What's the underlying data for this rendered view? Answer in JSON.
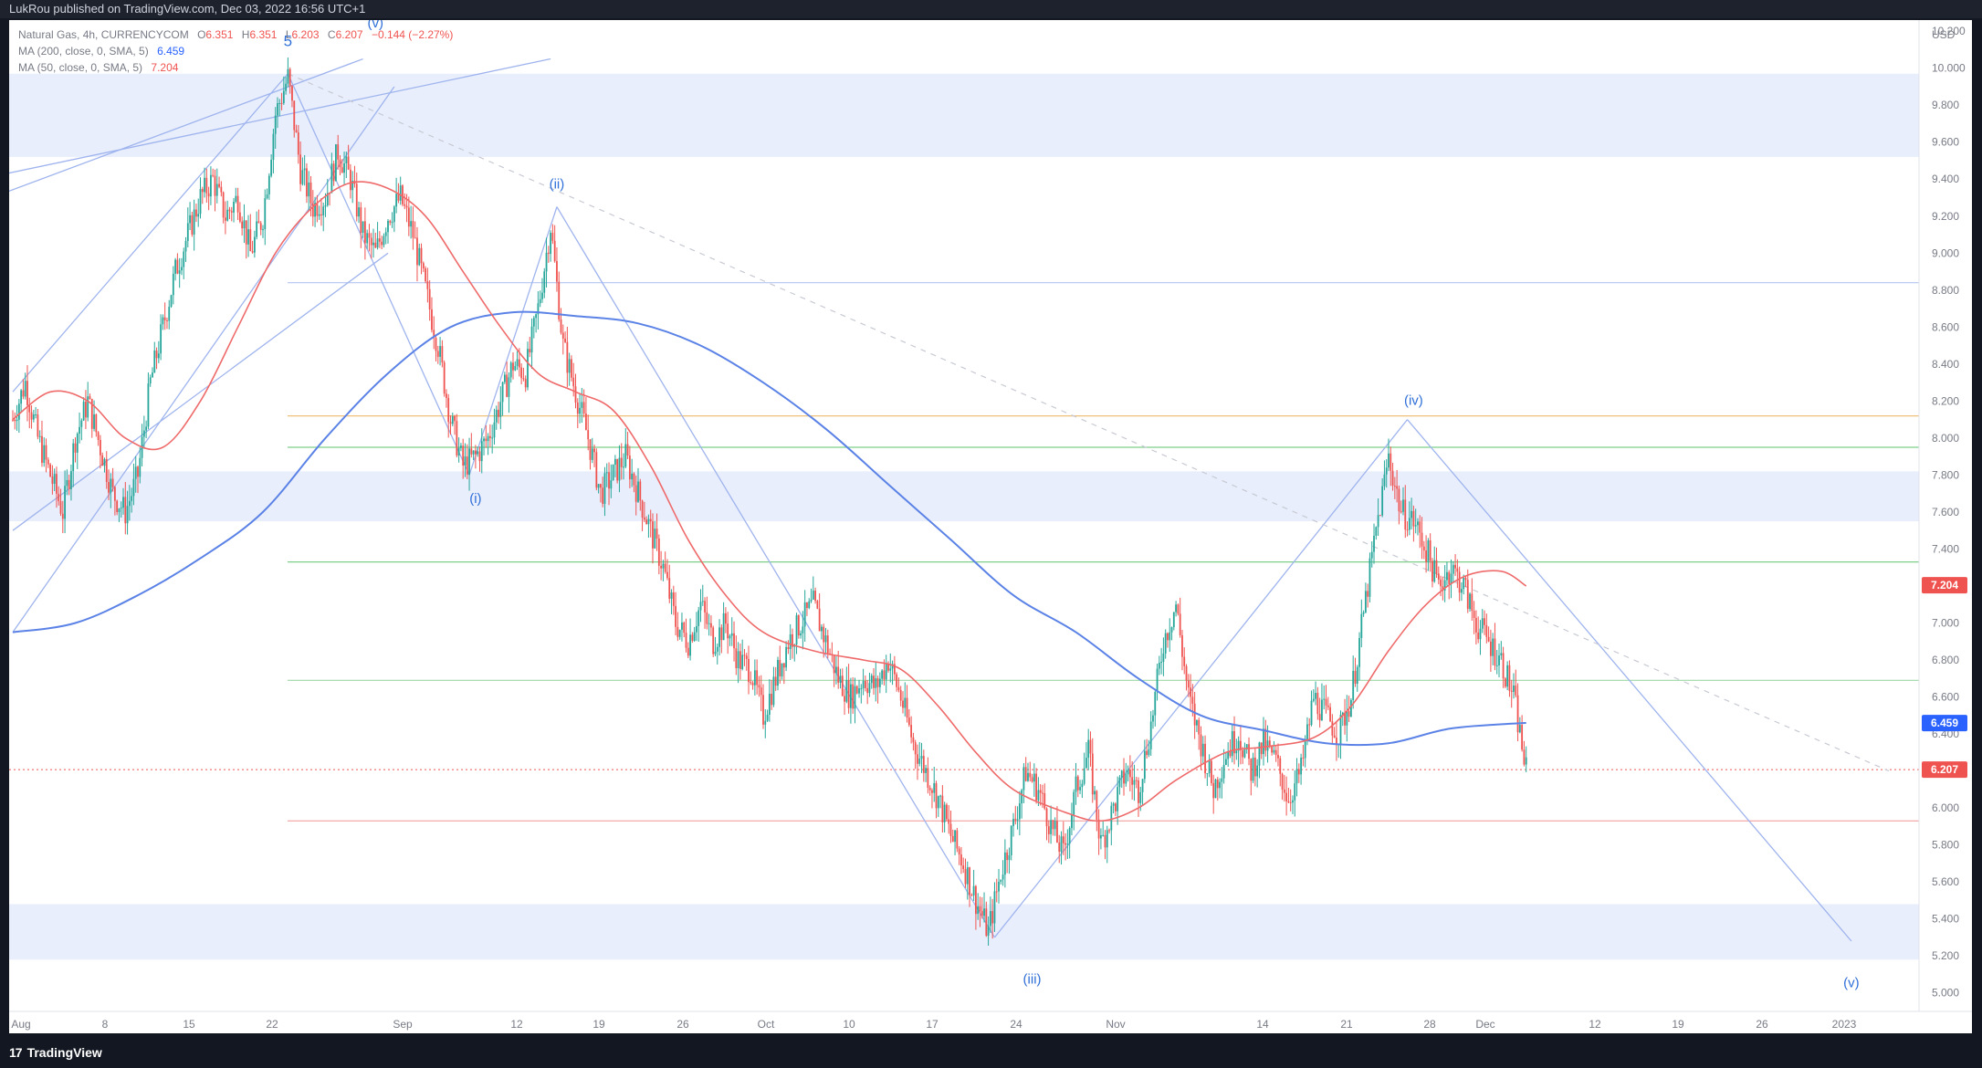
{
  "header": {
    "publisher_text": "LukRou published on TradingView.com, Dec 03, 2022 16:56 UTC+1"
  },
  "footer": {
    "brand": "TradingView"
  },
  "legend": {
    "symbol": "Natural Gas, 4h, CURRENCYCOM",
    "o_label": "O",
    "o_value": "6.351",
    "h_label": "H",
    "h_value": "6.351",
    "l_label": "L",
    "l_value": "6.203",
    "c_label": "C",
    "c_value": "6.207",
    "change": "−0.144 (−2.27%)",
    "ma200_text": "MA (200, close, 0, SMA, 5)",
    "ma200_value": "6.459",
    "ma50_text": "MA (50, close, 0, SMA, 5)",
    "ma50_value": "7.204"
  },
  "colors": {
    "up": "#26a69a",
    "down": "#ef5350",
    "ma200": "#5b82e6",
    "ma50": "#ef6a6a",
    "zone": "#e8eefc",
    "trend": "#9fb4ee",
    "wave_label": "#2f6fd8"
  },
  "chart_data": {
    "type": "candlestick",
    "title": "Natural Gas, 4h, CURRENCYCOM",
    "currency": "USD",
    "ylim": [
      4.9,
      10.26
    ],
    "y_ticks": [
      "10.200",
      "10.000",
      "9.800",
      "9.600",
      "9.400",
      "9.200",
      "9.000",
      "8.800",
      "8.600",
      "8.400",
      "8.200",
      "8.000",
      "7.800",
      "7.600",
      "7.400",
      "7.200",
      "7.000",
      "6.800",
      "6.600",
      "6.400",
      "6.200",
      "6.000",
      "5.800",
      "5.600",
      "5.400",
      "5.200",
      "5.000"
    ],
    "x_ticks": [
      "Aug",
      "8",
      "15",
      "22",
      "Sep",
      "12",
      "19",
      "26",
      "Oct",
      "10",
      "17",
      "24",
      "Nov",
      "14",
      "21",
      "28",
      "Dec",
      "12",
      "19",
      "26",
      "2023"
    ],
    "price_anchors": [
      {
        "d": 0,
        "v": 8.1
      },
      {
        "d": 1,
        "v": 8.3
      },
      {
        "d": 2,
        "v": 8.0
      },
      {
        "d": 3,
        "v": 7.8
      },
      {
        "d": 4,
        "v": 7.6
      },
      {
        "d": 5,
        "v": 8.0
      },
      {
        "d": 6,
        "v": 8.2
      },
      {
        "d": 7,
        "v": 7.95
      },
      {
        "d": 8,
        "v": 7.7
      },
      {
        "d": 9,
        "v": 7.6
      },
      {
        "d": 10,
        "v": 7.8
      },
      {
        "d": 11,
        "v": 8.3
      },
      {
        "d": 12,
        "v": 8.6
      },
      {
        "d": 13,
        "v": 8.9
      },
      {
        "d": 14,
        "v": 9.1
      },
      {
        "d": 15,
        "v": 9.3
      },
      {
        "d": 16,
        "v": 9.4
      },
      {
        "d": 17,
        "v": 9.2
      },
      {
        "d": 18,
        "v": 9.3
      },
      {
        "d": 19,
        "v": 9.0
      },
      {
        "d": 20,
        "v": 9.2
      },
      {
        "d": 21,
        "v": 9.75
      },
      {
        "d": 22,
        "v": 9.95
      },
      {
        "d": 23,
        "v": 9.45
      },
      {
        "d": 24,
        "v": 9.25
      },
      {
        "d": 25,
        "v": 9.3
      },
      {
        "d": 26,
        "v": 9.55
      },
      {
        "d": 27,
        "v": 9.4
      },
      {
        "d": 28,
        "v": 9.1
      },
      {
        "d": 29,
        "v": 9.0
      },
      {
        "d": 30,
        "v": 9.2
      },
      {
        "d": 31,
        "v": 9.3
      },
      {
        "d": 32,
        "v": 9.1
      },
      {
        "d": 33,
        "v": 8.8
      },
      {
        "d": 34,
        "v": 8.5
      },
      {
        "d": 35,
        "v": 8.1
      },
      {
        "d": 36,
        "v": 7.85
      },
      {
        "d": 37,
        "v": 7.9
      },
      {
        "d": 38,
        "v": 8.0
      },
      {
        "d": 39,
        "v": 8.2
      },
      {
        "d": 40,
        "v": 8.4
      },
      {
        "d": 41,
        "v": 8.35
      },
      {
        "d": 42,
        "v": 8.7
      },
      {
        "d": 43,
        "v": 9.15
      },
      {
        "d": 44,
        "v": 8.5
      },
      {
        "d": 45,
        "v": 8.25
      },
      {
        "d": 46,
        "v": 8.0
      },
      {
        "d": 47,
        "v": 7.7
      },
      {
        "d": 48,
        "v": 7.8
      },
      {
        "d": 49,
        "v": 7.9
      },
      {
        "d": 50,
        "v": 7.7
      },
      {
        "d": 51,
        "v": 7.5
      },
      {
        "d": 52,
        "v": 7.3
      },
      {
        "d": 53,
        "v": 7.0
      },
      {
        "d": 54,
        "v": 6.9
      },
      {
        "d": 55,
        "v": 7.1
      },
      {
        "d": 56,
        "v": 6.9
      },
      {
        "d": 57,
        "v": 7.0
      },
      {
        "d": 58,
        "v": 6.8
      },
      {
        "d": 59,
        "v": 6.75
      },
      {
        "d": 60,
        "v": 6.5
      },
      {
        "d": 61,
        "v": 6.7
      },
      {
        "d": 62,
        "v": 6.9
      },
      {
        "d": 63,
        "v": 7.0
      },
      {
        "d": 64,
        "v": 7.1
      },
      {
        "d": 65,
        "v": 6.9
      },
      {
        "d": 66,
        "v": 6.7
      },
      {
        "d": 67,
        "v": 6.6
      },
      {
        "d": 68,
        "v": 6.7
      },
      {
        "d": 69,
        "v": 6.65
      },
      {
        "d": 70,
        "v": 6.8
      },
      {
        "d": 71,
        "v": 6.6
      },
      {
        "d": 72,
        "v": 6.35
      },
      {
        "d": 73,
        "v": 6.2
      },
      {
        "d": 74,
        "v": 6.05
      },
      {
        "d": 75,
        "v": 5.85
      },
      {
        "d": 76,
        "v": 5.7
      },
      {
        "d": 77,
        "v": 5.5
      },
      {
        "d": 78,
        "v": 5.33
      },
      {
        "d": 79,
        "v": 5.65
      },
      {
        "d": 80,
        "v": 5.9
      },
      {
        "d": 81,
        "v": 6.2
      },
      {
        "d": 82,
        "v": 6.1
      },
      {
        "d": 83,
        "v": 5.9
      },
      {
        "d": 84,
        "v": 5.75
      },
      {
        "d": 85,
        "v": 6.1
      },
      {
        "d": 86,
        "v": 6.3
      },
      {
        "d": 87,
        "v": 5.8
      },
      {
        "d": 88,
        "v": 6.0
      },
      {
        "d": 89,
        "v": 6.2
      },
      {
        "d": 90,
        "v": 6.1
      },
      {
        "d": 91,
        "v": 6.45
      },
      {
        "d": 92,
        "v": 6.9
      },
      {
        "d": 93,
        "v": 7.1
      },
      {
        "d": 94,
        "v": 6.6
      },
      {
        "d": 95,
        "v": 6.35
      },
      {
        "d": 96,
        "v": 6.1
      },
      {
        "d": 97,
        "v": 6.3
      },
      {
        "d": 98,
        "v": 6.4
      },
      {
        "d": 99,
        "v": 6.2
      },
      {
        "d": 100,
        "v": 6.35
      },
      {
        "d": 101,
        "v": 6.25
      },
      {
        "d": 102,
        "v": 6.05
      },
      {
        "d": 103,
        "v": 6.2
      },
      {
        "d": 104,
        "v": 6.6
      },
      {
        "d": 105,
        "v": 6.5
      },
      {
        "d": 106,
        "v": 6.4
      },
      {
        "d": 107,
        "v": 6.6
      },
      {
        "d": 108,
        "v": 7.05
      },
      {
        "d": 109,
        "v": 7.5
      },
      {
        "d": 110,
        "v": 7.9
      },
      {
        "d": 111,
        "v": 7.6
      },
      {
        "d": 112,
        "v": 7.55
      },
      {
        "d": 113,
        "v": 7.4
      },
      {
        "d": 114,
        "v": 7.2
      },
      {
        "d": 115,
        "v": 7.3
      },
      {
        "d": 116,
        "v": 7.2
      },
      {
        "d": 117,
        "v": 7.0
      },
      {
        "d": 118,
        "v": 6.9
      },
      {
        "d": 119,
        "v": 6.8
      },
      {
        "d": 120,
        "v": 6.6
      },
      {
        "d": 121,
        "v": 6.2
      }
    ],
    "ma200": [
      {
        "d": 0,
        "v": 6.95
      },
      {
        "d": 5,
        "v": 7.0
      },
      {
        "d": 10,
        "v": 7.15
      },
      {
        "d": 15,
        "v": 7.35
      },
      {
        "d": 20,
        "v": 7.6
      },
      {
        "d": 25,
        "v": 8.0
      },
      {
        "d": 30,
        "v": 8.35
      },
      {
        "d": 35,
        "v": 8.6
      },
      {
        "d": 40,
        "v": 8.68
      },
      {
        "d": 45,
        "v": 8.66
      },
      {
        "d": 50,
        "v": 8.62
      },
      {
        "d": 55,
        "v": 8.5
      },
      {
        "d": 60,
        "v": 8.3
      },
      {
        "d": 65,
        "v": 8.05
      },
      {
        "d": 70,
        "v": 7.75
      },
      {
        "d": 75,
        "v": 7.45
      },
      {
        "d": 80,
        "v": 7.15
      },
      {
        "d": 85,
        "v": 6.95
      },
      {
        "d": 90,
        "v": 6.7
      },
      {
        "d": 95,
        "v": 6.5
      },
      {
        "d": 100,
        "v": 6.42
      },
      {
        "d": 105,
        "v": 6.35
      },
      {
        "d": 110,
        "v": 6.35
      },
      {
        "d": 115,
        "v": 6.43
      },
      {
        "d": 121,
        "v": 6.46
      }
    ],
    "ma50": [
      {
        "d": 0,
        "v": 8.1
      },
      {
        "d": 3,
        "v": 8.25
      },
      {
        "d": 6,
        "v": 8.2
      },
      {
        "d": 9,
        "v": 8.0
      },
      {
        "d": 12,
        "v": 7.95
      },
      {
        "d": 15,
        "v": 8.2
      },
      {
        "d": 18,
        "v": 8.6
      },
      {
        "d": 21,
        "v": 9.0
      },
      {
        "d": 24,
        "v": 9.25
      },
      {
        "d": 27,
        "v": 9.38
      },
      {
        "d": 30,
        "v": 9.35
      },
      {
        "d": 33,
        "v": 9.2
      },
      {
        "d": 36,
        "v": 8.9
      },
      {
        "d": 39,
        "v": 8.6
      },
      {
        "d": 42,
        "v": 8.35
      },
      {
        "d": 45,
        "v": 8.25
      },
      {
        "d": 48,
        "v": 8.15
      },
      {
        "d": 51,
        "v": 7.85
      },
      {
        "d": 54,
        "v": 7.45
      },
      {
        "d": 57,
        "v": 7.15
      },
      {
        "d": 60,
        "v": 6.95
      },
      {
        "d": 64,
        "v": 6.85
      },
      {
        "d": 68,
        "v": 6.8
      },
      {
        "d": 71,
        "v": 6.75
      },
      {
        "d": 74,
        "v": 6.55
      },
      {
        "d": 77,
        "v": 6.3
      },
      {
        "d": 80,
        "v": 6.1
      },
      {
        "d": 84,
        "v": 5.98
      },
      {
        "d": 87,
        "v": 5.93
      },
      {
        "d": 90,
        "v": 6.0
      },
      {
        "d": 93,
        "v": 6.15
      },
      {
        "d": 97,
        "v": 6.3
      },
      {
        "d": 100,
        "v": 6.33
      },
      {
        "d": 104,
        "v": 6.38
      },
      {
        "d": 107,
        "v": 6.55
      },
      {
        "d": 110,
        "v": 6.85
      },
      {
        "d": 113,
        "v": 7.1
      },
      {
        "d": 116,
        "v": 7.25
      },
      {
        "d": 119,
        "v": 7.28
      },
      {
        "d": 121,
        "v": 7.2
      }
    ],
    "zones": [
      [
        9.52,
        9.97
      ],
      [
        7.55,
        7.82
      ],
      [
        5.18,
        5.48
      ]
    ],
    "h_levels": [
      {
        "v": 8.84,
        "color": "#b6c6f2"
      },
      {
        "v": 8.12,
        "color": "#f0c078"
      },
      {
        "v": 7.95,
        "color": "#7fcf8a"
      },
      {
        "v": 7.33,
        "color": "#7fcf8a"
      },
      {
        "v": 6.69,
        "color": "#9fd8a7"
      },
      {
        "v": 5.93,
        "color": "#f2a0a0"
      }
    ],
    "current_price_line": 6.207,
    "wave_labels": [
      {
        "text": "5",
        "d": 22,
        "v": 10.12,
        "size": 17
      },
      {
        "text": "(v)",
        "d": 29,
        "v": 10.22,
        "size": 15
      },
      {
        "text": "(ii)",
        "d": 43.5,
        "v": 9.35,
        "size": 15
      },
      {
        "text": "(i)",
        "d": 37,
        "v": 7.65,
        "size": 15
      },
      {
        "text": "(iii)",
        "d": 81.5,
        "v": 5.05,
        "size": 15
      },
      {
        "text": "(iv)",
        "d": 112,
        "v": 8.18,
        "size": 15
      },
      {
        "text": "(v)",
        "d": 147,
        "v": 5.03,
        "size": 15
      }
    ],
    "price_tags": [
      {
        "label": "7.204",
        "value": 7.204,
        "color": "#ef5350"
      },
      {
        "label": "6.459",
        "value": 6.459,
        "color": "#2962ff"
      },
      {
        "label": "6.207",
        "value": 6.207,
        "color": "#ef5350"
      }
    ]
  }
}
